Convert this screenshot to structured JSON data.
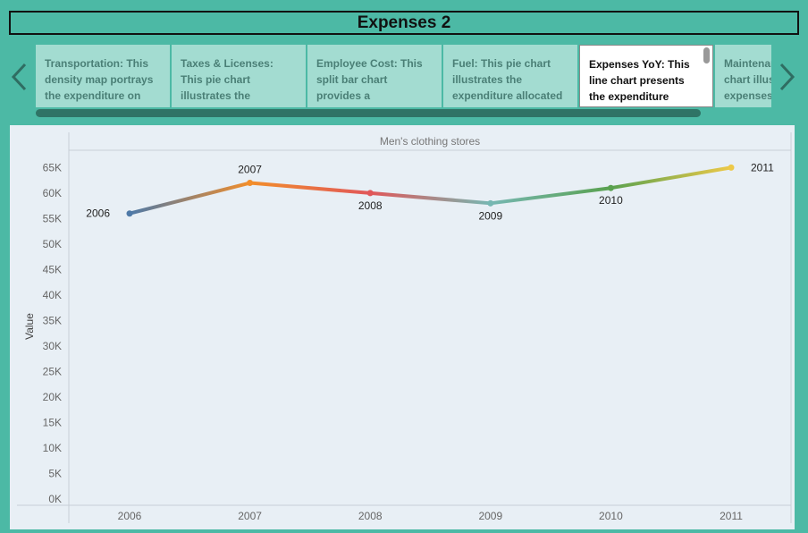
{
  "header": {
    "title": "Expenses 2"
  },
  "story_points": [
    {
      "text": "Transportation: This density map portrays the expenditure on",
      "active": false
    },
    {
      "text": "Taxes & Licenses: This pie chart illustrates the proportion of",
      "active": false
    },
    {
      "text": "Employee Cost: This split bar chart provides a comparison",
      "active": false
    },
    {
      "text": "Fuel: This pie chart illustrates the expenditure allocated",
      "active": false
    },
    {
      "text": "Expenses YoY: This line chart presents the expenditure trends.",
      "active": true
    },
    {
      "text": "Maintenance: This pie chart illustrates the expenses",
      "active": false
    }
  ],
  "nav_icons": {
    "prev": "chevron-left-icon",
    "next": "chevron-right-icon"
  },
  "colors": {
    "background": "#4cb9a5",
    "chart_bg": "#e8eff5",
    "series_gradient": [
      "#4e79a7",
      "#f28e2b",
      "#e15759",
      "#76b7b2",
      "#59a14f",
      "#edc948"
    ]
  },
  "chart_data": {
    "type": "line",
    "title": "Men's clothing stores",
    "xlabel": "",
    "ylabel": "Value",
    "x": [
      "2006",
      "2007",
      "2008",
      "2009",
      "2010",
      "2011"
    ],
    "series": [
      {
        "values": [
          56000,
          62000,
          60000,
          58000,
          61000,
          65000
        ]
      }
    ],
    "point_labels": [
      "2006",
      "2007",
      "2008",
      "2009",
      "2010",
      "2011"
    ],
    "ylim": [
      0,
      67000
    ],
    "yticks": [
      "0K",
      "5K",
      "10K",
      "15K",
      "20K",
      "25K",
      "30K",
      "35K",
      "40K",
      "45K",
      "50K",
      "55K",
      "60K",
      "65K"
    ],
    "grid": false,
    "legend": "none"
  }
}
